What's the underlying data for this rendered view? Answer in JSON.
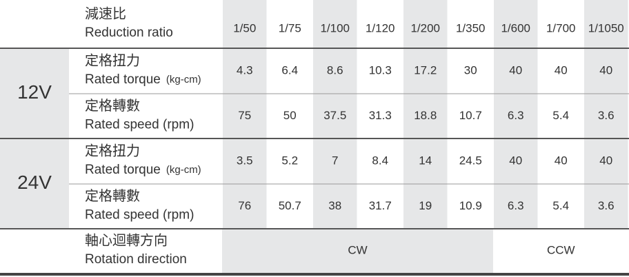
{
  "header": {
    "label_zh": "減速比",
    "label_en": "Reduction ratio",
    "ratios": [
      "1/50",
      "1/75",
      "1/100",
      "1/120",
      "1/200",
      "1/350",
      "1/600",
      "1/700",
      "1/1050"
    ]
  },
  "groups": [
    {
      "voltage": "12V",
      "rows": [
        {
          "label_zh": "定格扭力",
          "label_en": "Rated torque",
          "unit": "(kg-cm)",
          "values": [
            4.3,
            6.4,
            8.6,
            10.3,
            17.2,
            30,
            40,
            40,
            40
          ]
        },
        {
          "label_zh": "定格轉數",
          "label_en": "Rated speed (rpm)",
          "values": [
            75,
            50,
            37.5,
            31.3,
            18.8,
            10.7,
            6.3,
            5.4,
            3.6
          ]
        }
      ]
    },
    {
      "voltage": "24V",
      "rows": [
        {
          "label_zh": "定格扭力",
          "label_en": "Rated torque",
          "unit": "(kg-cm)",
          "values": [
            3.5,
            5.2,
            7,
            8.4,
            14,
            24.5,
            40,
            40,
            40
          ]
        },
        {
          "label_zh": "定格轉數",
          "label_en": "Rated speed (rpm)",
          "values": [
            76,
            50.7,
            38,
            31.7,
            19,
            10.9,
            6.3,
            5.4,
            3.6
          ]
        }
      ]
    }
  ],
  "rotation": {
    "label_zh": "軸心迴轉方向",
    "label_en": "Rotation direction",
    "cw": "CW",
    "ccw": "CCW"
  }
}
